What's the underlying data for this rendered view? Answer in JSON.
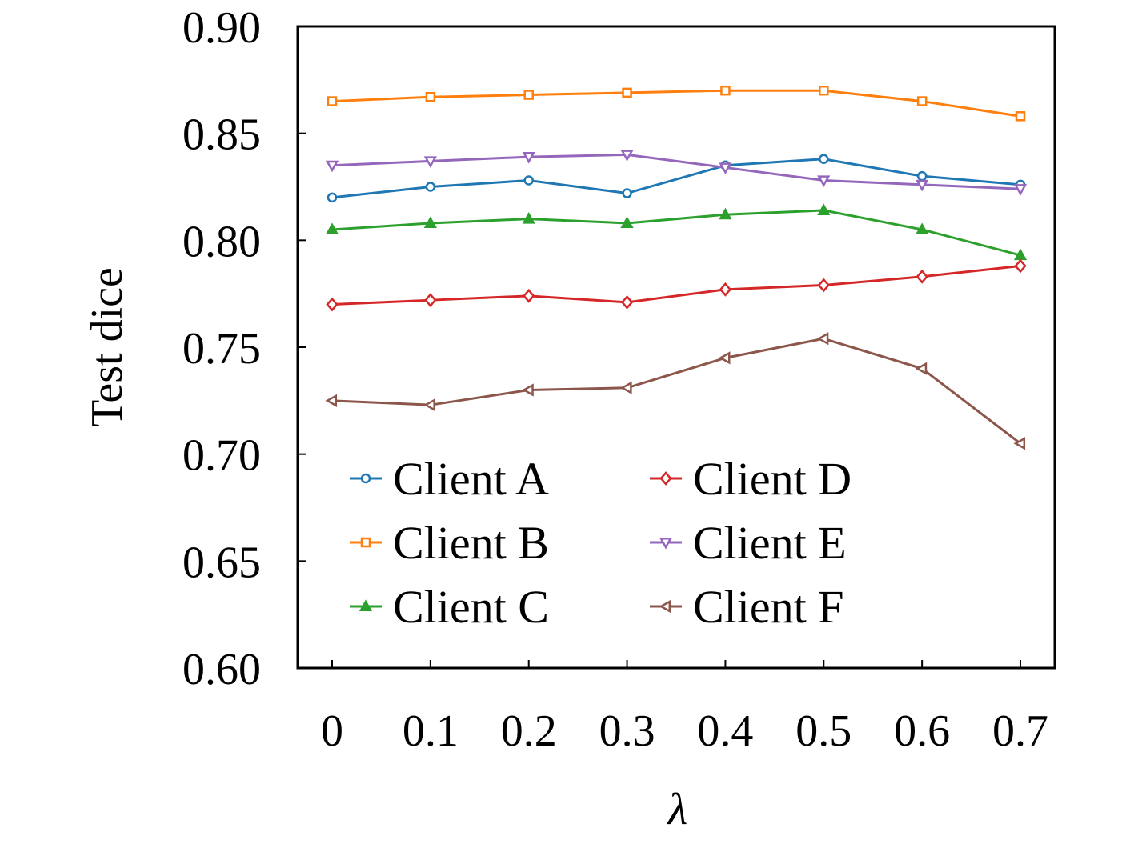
{
  "chart_data": {
    "type": "line",
    "title": "",
    "xlabel": "λ",
    "ylabel": "Test dice",
    "x": [
      0,
      0.1,
      0.2,
      0.3,
      0.4,
      0.5,
      0.6,
      0.7
    ],
    "x_tick_labels": [
      "0",
      "0.1",
      "0.2",
      "0.3",
      "0.4",
      "0.5",
      "0.6",
      "0.7"
    ],
    "ylim": [
      0.6,
      0.9
    ],
    "y_ticks": [
      0.6,
      0.65,
      0.7,
      0.75,
      0.8,
      0.85,
      0.9
    ],
    "y_tick_labels": [
      "0.60",
      "0.65",
      "0.70",
      "0.75",
      "0.80",
      "0.85",
      "0.90"
    ],
    "grid": false,
    "legend_placement": "lower-left",
    "series": [
      {
        "name": "Client A",
        "color": "#1f77b4",
        "marker": "circle",
        "values": [
          0.82,
          0.825,
          0.828,
          0.822,
          0.835,
          0.838,
          0.83,
          0.826
        ]
      },
      {
        "name": "Client B",
        "color": "#ff7f0e",
        "marker": "square",
        "values": [
          0.865,
          0.867,
          0.868,
          0.869,
          0.87,
          0.87,
          0.865,
          0.858
        ]
      },
      {
        "name": "Client C",
        "color": "#2ca02c",
        "marker": "triangle-up",
        "values": [
          0.805,
          0.808,
          0.81,
          0.808,
          0.812,
          0.814,
          0.805,
          0.793
        ]
      },
      {
        "name": "Client D",
        "color": "#d62728",
        "marker": "diamond",
        "values": [
          0.77,
          0.772,
          0.774,
          0.771,
          0.777,
          0.779,
          0.783,
          0.788
        ]
      },
      {
        "name": "Client E",
        "color": "#9467bd",
        "marker": "triangle-down",
        "values": [
          0.835,
          0.837,
          0.839,
          0.84,
          0.834,
          0.828,
          0.826,
          0.824
        ]
      },
      {
        "name": "Client F",
        "color": "#8c564b",
        "marker": "triangle-left",
        "values": [
          0.725,
          0.723,
          0.73,
          0.731,
          0.745,
          0.754,
          0.74,
          0.705
        ]
      }
    ]
  }
}
